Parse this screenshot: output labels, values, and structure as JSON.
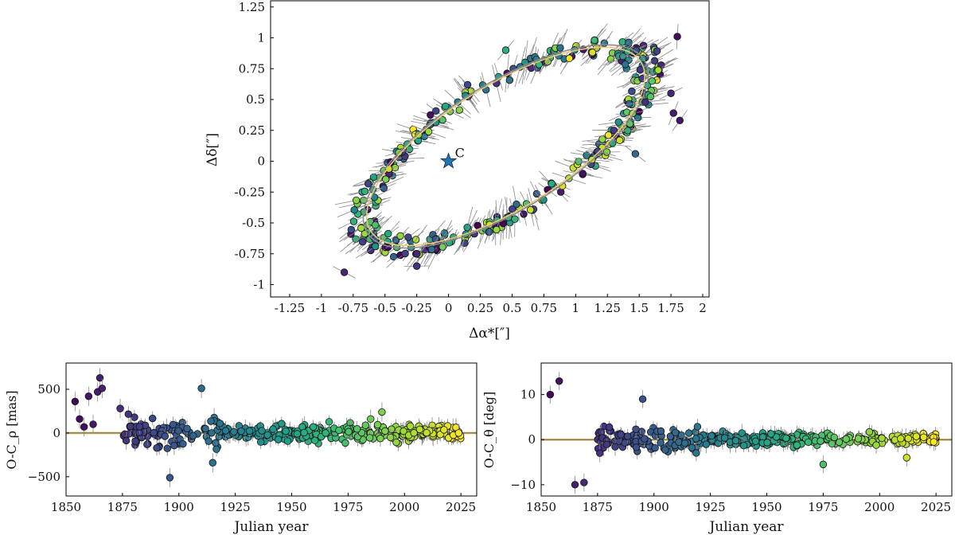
{
  "chart_data": [
    {
      "id": "orbit",
      "type": "scatter",
      "xlabel": "Δα*[″]",
      "ylabel": "Δδ[″]",
      "xlim": [
        -1.4,
        2.05
      ],
      "ylim": [
        -1.1,
        1.3
      ],
      "xticks": [
        -1.25,
        -1,
        -0.75,
        -0.5,
        -0.25,
        0,
        0.25,
        0.5,
        0.75,
        1,
        1.25,
        1.5,
        1.75,
        2
      ],
      "xtick_labels": [
        "-1.25",
        "-1",
        "-0.75",
        "-0.5",
        "-0.25",
        "0",
        "0.25",
        "0.5",
        "0.75",
        "1",
        "1.25",
        "1.5",
        "1.75",
        "2"
      ],
      "yticks": [
        1.25,
        1,
        0.75,
        0.5,
        0.25,
        0,
        -0.25,
        -0.5,
        -0.75,
        -1
      ],
      "ytick_labels": [
        "1.25",
        "1",
        "0.75",
        "0.5",
        "0.25",
        "0",
        "-0.25",
        "-0.5",
        "-0.75",
        "-1"
      ],
      "center_marker": {
        "label": "C",
        "x": 0,
        "y": 0,
        "color": "#1f77b4"
      },
      "orbit_ellipse": {
        "center": [
          0.45,
          0.12
        ],
        "semi_major": 1.28,
        "semi_minor": 0.5,
        "angle_deg": 33
      },
      "points": [
        {
          "x": 1.8,
          "y": 1.01,
          "year": 1855
        },
        {
          "x": 1.47,
          "y": 0.06,
          "year": 1910
        },
        {
          "x": 1.82,
          "y": 0.33,
          "year": 1860
        },
        {
          "x": 1.77,
          "y": 0.39,
          "year": 1865
        },
        {
          "x": 1.75,
          "y": 0.55,
          "year": 1870
        },
        {
          "x": -0.82,
          "y": -0.9,
          "year": 1868
        },
        {
          "x": -0.25,
          "y": -0.85,
          "year": 1875
        },
        {
          "x": 0.45,
          "y": 0.9,
          "year": 1960
        },
        {
          "x": 0.15,
          "y": 0.62,
          "year": 1890
        }
      ],
      "colormap": "viridis",
      "color_range_years": [
        1850,
        2025
      ]
    },
    {
      "id": "residual-rho",
      "type": "scatter",
      "xlabel": "Julian year",
      "ylabel": "O-C_ρ [mas]",
      "xlim": [
        1850,
        2032
      ],
      "ylim": [
        -720,
        800
      ],
      "xticks": [
        1850,
        1875,
        1900,
        1925,
        1950,
        1975,
        2000,
        2025
      ],
      "yticks": [
        500,
        0,
        -500
      ],
      "ytick_labels": [
        "500",
        "0",
        "−500"
      ],
      "points": [
        {
          "x": 1854,
          "y": 360
        },
        {
          "x": 1856,
          "y": 160
        },
        {
          "x": 1858,
          "y": 70
        },
        {
          "x": 1860,
          "y": 420
        },
        {
          "x": 1862,
          "y": 100
        },
        {
          "x": 1864,
          "y": 470
        },
        {
          "x": 1865,
          "y": 630
        },
        {
          "x": 1866,
          "y": 510
        },
        {
          "x": 1874,
          "y": 280
        },
        {
          "x": 1896,
          "y": -510
        },
        {
          "x": 1910,
          "y": 510
        },
        {
          "x": 1915,
          "y": -340
        },
        {
          "x": 1990,
          "y": 240
        },
        {
          "x": 1985,
          "y": 160
        },
        {
          "x": 2024,
          "y": 0
        }
      ]
    },
    {
      "id": "residual-theta",
      "type": "scatter",
      "xlabel": "Julian year",
      "ylabel": "O-C_θ [deg]",
      "xlim": [
        1850,
        2032
      ],
      "ylim": [
        -12.5,
        17
      ],
      "xticks": [
        1850,
        1875,
        1900,
        1925,
        1950,
        1975,
        2000,
        2025
      ],
      "yticks": [
        10,
        0,
        -10
      ],
      "ytick_labels": [
        "10",
        "0",
        "−10"
      ],
      "points": [
        {
          "x": 1854,
          "y": 10
        },
        {
          "x": 1858,
          "y": 13
        },
        {
          "x": 1865,
          "y": -10
        },
        {
          "x": 1869,
          "y": -9.5
        },
        {
          "x": 1876,
          "y": -3
        },
        {
          "x": 1895,
          "y": 9
        },
        {
          "x": 1975,
          "y": -5.5
        },
        {
          "x": 2012,
          "y": -4
        },
        {
          "x": 2024,
          "y": -0.5
        }
      ]
    }
  ]
}
